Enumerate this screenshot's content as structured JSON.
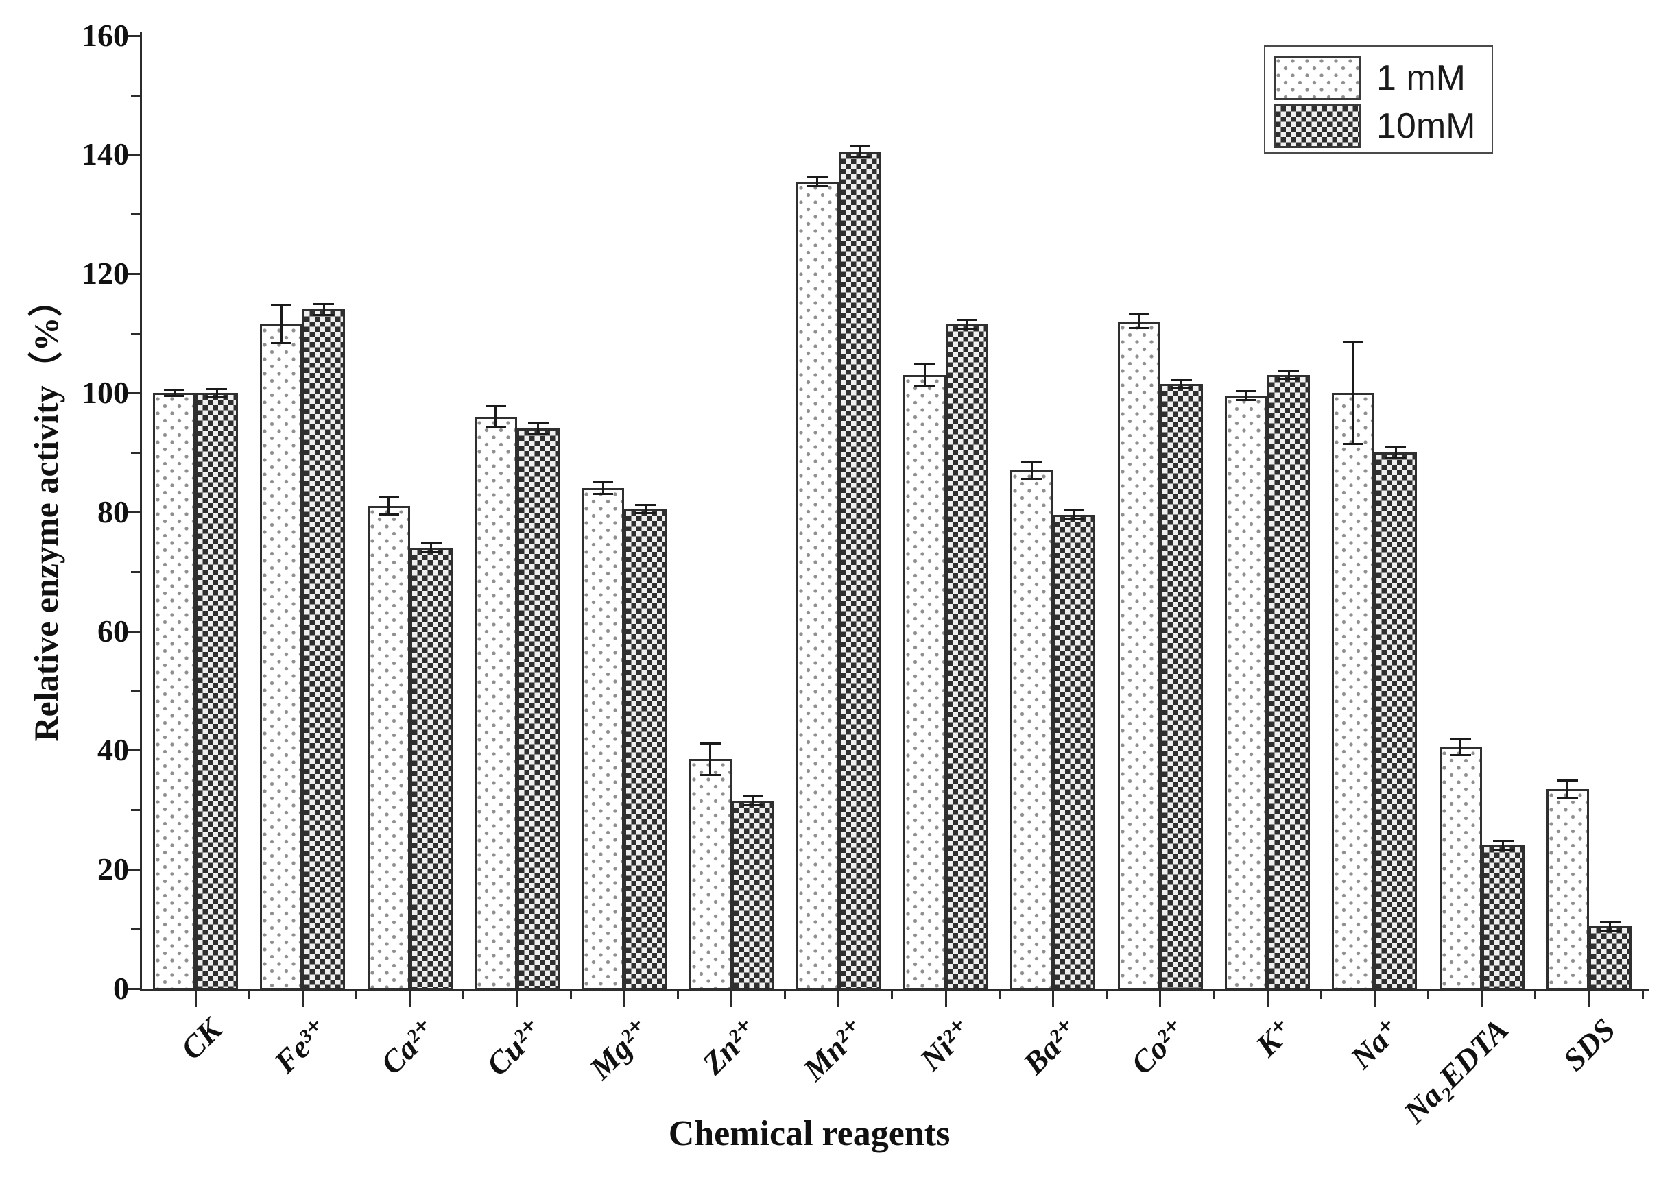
{
  "chart_data": {
    "type": "bar",
    "title": "",
    "xlabel": "Chemical reagents",
    "ylabel": "Relative enzyme activity（%）",
    "categories": [
      "CK",
      "Fe³⁺",
      "Ca²⁺",
      "Cu²⁺",
      "Mg²⁺",
      "Zn²⁺",
      "Mn²⁺",
      "Ni²⁺",
      "Ba²⁺",
      "Co²⁺",
      "K⁺",
      "Na⁺",
      "Na₂EDTA",
      "SDS"
    ],
    "series": [
      {
        "name": "1 mM",
        "pattern": "dots",
        "values": [
          100,
          111.5,
          81,
          96,
          84,
          38.5,
          135.5,
          103,
          87,
          112,
          99.5,
          100,
          40.5,
          33.5
        ],
        "errors": [
          0.6,
          3.2,
          1.5,
          1.8,
          1.0,
          2.7,
          0.9,
          1.8,
          1.5,
          1.2,
          0.8,
          8.6,
          1.4,
          1.5
        ]
      },
      {
        "name": "10mM",
        "pattern": "checker",
        "values": [
          100,
          114,
          74,
          94,
          80.5,
          31.5,
          140.5,
          111.5,
          79.5,
          101.5,
          103,
          90,
          24,
          10.5
        ],
        "errors": [
          0.7,
          1.0,
          0.8,
          1.0,
          0.8,
          0.8,
          1.0,
          0.8,
          0.8,
          0.7,
          0.8,
          1.0,
          0.8,
          0.8
        ]
      }
    ],
    "ylim": [
      0,
      160
    ],
    "ytick_step": 20,
    "yminor_step": 10,
    "grid": false,
    "legend_position": "top-right",
    "error_bars": true,
    "colors": {
      "axis": "#2b2b2b",
      "bar_border": "#2f2f2f",
      "dot_fill": "#8f8f8f",
      "checker_dark": "#2f2f2f",
      "checker_light": "#efefef",
      "text": "#111111",
      "background": "#ffffff"
    }
  }
}
